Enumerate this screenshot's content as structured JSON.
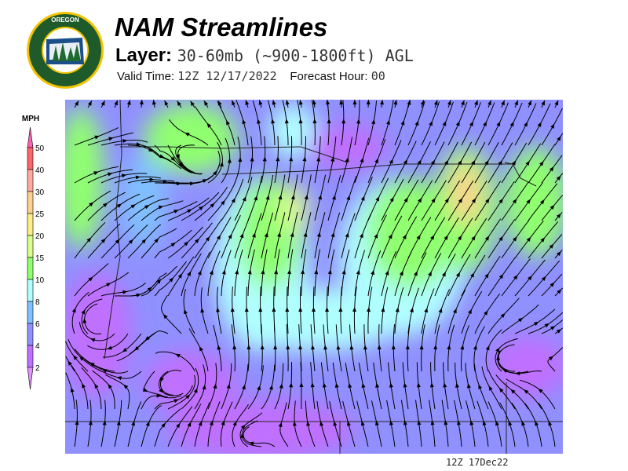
{
  "header": {
    "title": "NAM Streamlines",
    "layer_label": "Layer:",
    "layer_value": "30-60mb (~900-1800ft) AGL",
    "valid_label": "Valid Time:",
    "valid_value": "12Z 12/17/2022",
    "forecast_label": "Forecast Hour:",
    "forecast_value": "00"
  },
  "logo": {
    "text_top": "OREGON",
    "text_bottom": "DEPARTMENT OF FORESTRY",
    "colors": {
      "ring": "#1f5a2a",
      "gold": "#f2c400"
    }
  },
  "legend": {
    "unit": "MPH",
    "ticks": [
      "50",
      "40",
      "30",
      "25",
      "20",
      "15",
      "10",
      "8",
      "6",
      "4",
      "2"
    ],
    "colors": [
      "#ff6666",
      "#ffaaa0",
      "#ffd090",
      "#ffee88",
      "#d8ff90",
      "#90ff70",
      "#b0ffff",
      "#80c0ff",
      "#9090ff",
      "#c070ff"
    ],
    "over_color": "#ff60b0",
    "under_color": "#e090ff"
  },
  "footer": {
    "stamp": "12Z 17Dec22"
  }
}
